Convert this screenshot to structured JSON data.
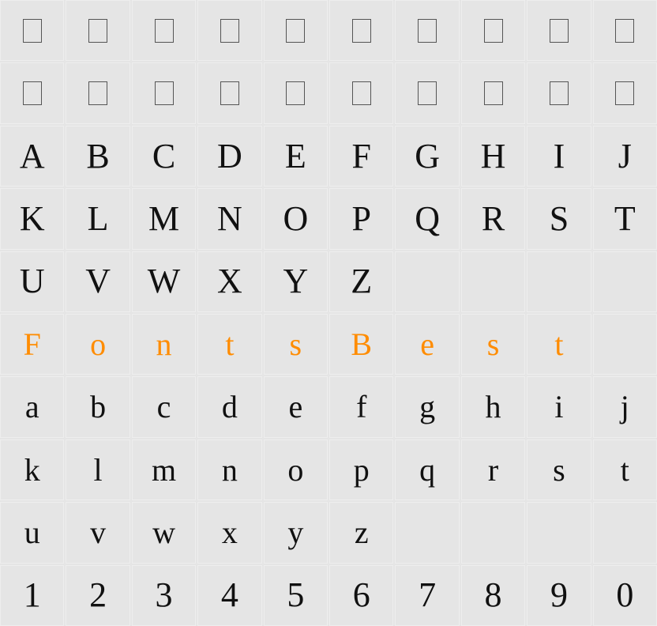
{
  "grid": {
    "columns": 10,
    "rows": 10,
    "background_color": "#e5e5e5",
    "cell_border_color": "#eeeeee",
    "text_color": "#111111",
    "highlight_color": "#ff8c00",
    "placeholder_box": {
      "border_color": "#555555",
      "width": 24,
      "height": 30
    },
    "font_family": "serif",
    "base_font_size": 44,
    "lower_font_size": 40,
    "rows_data": [
      {
        "type": "placeholder",
        "cells": [
          "",
          "",
          "",
          "",
          "",
          "",
          "",
          "",
          "",
          ""
        ]
      },
      {
        "type": "placeholder",
        "cells": [
          "",
          "",
          "",
          "",
          "",
          "",
          "",
          "",
          "",
          ""
        ]
      },
      {
        "type": "upper",
        "cells": [
          "A",
          "B",
          "C",
          "D",
          "E",
          "F",
          "G",
          "H",
          "I",
          "J"
        ]
      },
      {
        "type": "upper",
        "cells": [
          "K",
          "L",
          "M",
          "N",
          "O",
          "P",
          "Q",
          "R",
          "S",
          "T"
        ]
      },
      {
        "type": "upper",
        "cells": [
          "U",
          "V",
          "W",
          "X",
          "Y",
          "Z",
          "",
          "",
          "",
          ""
        ]
      },
      {
        "type": "highlight",
        "cells": [
          "F",
          "o",
          "n",
          "t",
          "s",
          "B",
          "e",
          "s",
          "t",
          ""
        ]
      },
      {
        "type": "lower",
        "cells": [
          "a",
          "b",
          "c",
          "d",
          "e",
          "f",
          "g",
          "h",
          "i",
          "j"
        ]
      },
      {
        "type": "lower",
        "cells": [
          "k",
          "l",
          "m",
          "n",
          "o",
          "p",
          "q",
          "r",
          "s",
          "t"
        ]
      },
      {
        "type": "lower",
        "cells": [
          "u",
          "v",
          "w",
          "x",
          "y",
          "z",
          "",
          "",
          "",
          ""
        ]
      },
      {
        "type": "digits",
        "cells": [
          "1",
          "2",
          "3",
          "4",
          "5",
          "6",
          "7",
          "8",
          "9",
          "0"
        ]
      }
    ]
  }
}
